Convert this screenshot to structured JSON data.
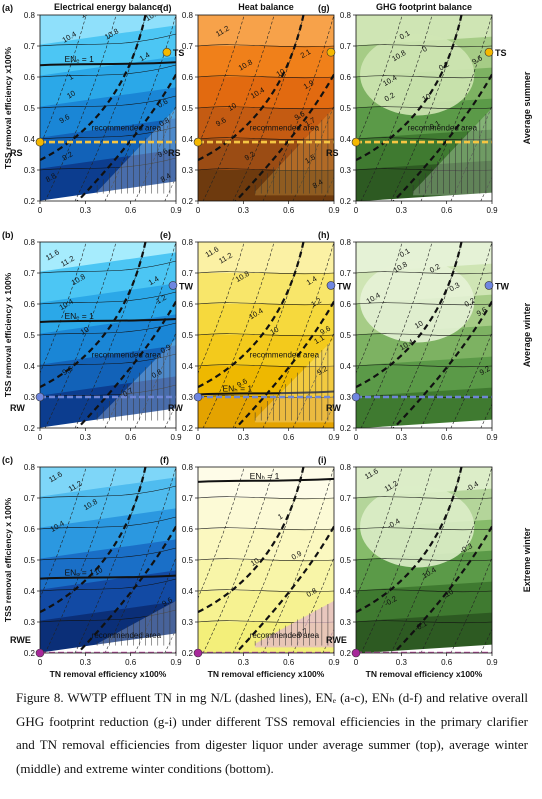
{
  "caption": "Figure 8. WWTP effluent TN in mg N/L (dashed lines), ENₑ (a-c), ENₕ (d-f) and relative overall GHG footprint reduction (g-i) under different TSS removal efficiencies in the primary clarifier and TN removal efficiencies from digester liquor under average summer (top), average winter (middle) and extreme winter conditions (bottom).",
  "columns": [
    "Electrical energy balance",
    "Heat balance",
    "GHG footprint balance"
  ],
  "rows": [
    "Average summer",
    "Average winter",
    "Extreme winter"
  ],
  "ylabels": [
    "TSS removal efficiency x100%",
    "TSS removal efficiency x 100%",
    "TSS removal efficiency x 100%"
  ],
  "xlabel": "TN removal efficiency x100%",
  "colors": {
    "blue": "#1a86d6",
    "orange": "#e26a10",
    "yellow": "#f6e03a",
    "green": "#8cc069"
  },
  "chart_data": [
    {
      "panel": "(a)",
      "type": "heatmap",
      "xlim": [
        0,
        0.9
      ],
      "ylim": [
        0.2,
        0.8
      ],
      "xticks": [
        "0",
        "0.3",
        "0.6",
        "0.9"
      ],
      "yticks": [
        "0.2",
        "0.3",
        "0.4",
        "0.5",
        "0.6",
        "0.7",
        "0.8"
      ],
      "contours": [
        {
          "label": "8.4",
          "x": 0.81,
          "y": 0.26
        },
        {
          "label": "8.8",
          "x": 0.05,
          "y": 0.26
        },
        {
          "label": "9.2",
          "x": 0.16,
          "y": 0.33
        },
        {
          "label": "9.6",
          "x": 0.79,
          "y": 0.34
        },
        {
          "label": "9.6",
          "x": 0.14,
          "y": 0.45
        },
        {
          "label": "10",
          "x": 0.19,
          "y": 0.53
        },
        {
          "label": "1",
          "x": 0.2,
          "y": 0.59
        },
        {
          "label": "10.4",
          "x": 0.16,
          "y": 0.71
        },
        {
          "label": "10.8",
          "x": 0.44,
          "y": 0.72
        },
        {
          "label": "11.2",
          "x": 0.28,
          "y": 0.79
        },
        {
          "label": "1.4",
          "x": 0.67,
          "y": 0.65
        },
        {
          "label": "0.6",
          "x": 0.79,
          "y": 0.5
        },
        {
          "label": "0.8",
          "x": 0.8,
          "y": 0.44
        },
        {
          "label": "10.8",
          "x": 0.71,
          "y": 0.78
        }
      ],
      "balance_label": "ENₑ = 1",
      "region_label": "recommended area",
      "markers": [
        {
          "label": "TS",
          "x": 0.84,
          "y": 0.68
        },
        {
          "label": "RS",
          "x": 0.0,
          "y": 0.39
        }
      ]
    },
    {
      "panel": "(d)",
      "type": "heatmap",
      "xlim": [
        0,
        0.9
      ],
      "ylim": [
        0.2,
        0.8
      ],
      "xticks": [
        "0",
        "0.3",
        "0.6",
        "0.9"
      ],
      "yticks": [
        "0.2",
        "0.3",
        "0.4",
        "0.5",
        "0.6",
        "0.7",
        "0.8"
      ],
      "contours": [
        {
          "label": "11.2",
          "x": 0.13,
          "y": 0.73
        },
        {
          "label": "10.8",
          "x": 0.28,
          "y": 0.62
        },
        {
          "label": "10.4",
          "x": 0.36,
          "y": 0.53
        },
        {
          "label": "10",
          "x": 0.21,
          "y": 0.49
        },
        {
          "label": "9.6",
          "x": 0.13,
          "y": 0.44
        },
        {
          "label": "9.2",
          "x": 0.32,
          "y": 0.33
        },
        {
          "label": "2.1",
          "x": 0.69,
          "y": 0.66
        },
        {
          "label": "1.9",
          "x": 0.71,
          "y": 0.56
        },
        {
          "label": "1.7",
          "x": 0.72,
          "y": 0.44
        },
        {
          "label": "1.5",
          "x": 0.72,
          "y": 0.32
        },
        {
          "label": "8.4",
          "x": 0.77,
          "y": 0.24
        },
        {
          "label": "10",
          "x": 0.53,
          "y": 0.6
        },
        {
          "label": "9.6",
          "x": 0.65,
          "y": 0.46
        }
      ],
      "balance_label": "",
      "region_label": "recommended area",
      "markers": [
        {
          "label": "",
          "x": 0.88,
          "y": 0.68
        },
        {
          "label": "RS",
          "x": 0.0,
          "y": 0.39
        }
      ]
    },
    {
      "panel": "(g)",
      "type": "heatmap",
      "xlim": [
        0,
        0.9
      ],
      "ylim": [
        0.2,
        0.8
      ],
      "xticks": [
        "0",
        "0.3",
        "0.6",
        "0.9"
      ],
      "yticks": [
        "0.2",
        "0.3",
        "0.4",
        "0.5",
        "0.6",
        "0.7",
        "0.8"
      ],
      "contours": [
        {
          "label": "0.1",
          "x": 0.3,
          "y": 0.72
        },
        {
          "label": "0",
          "x": 0.45,
          "y": 0.68
        },
        {
          "label": "0.2",
          "x": 0.2,
          "y": 0.52
        },
        {
          "label": "0.2",
          "x": 0.56,
          "y": 0.62
        },
        {
          "label": "0.1",
          "x": 0.5,
          "y": 0.43
        },
        {
          "label": "10.8",
          "x": 0.25,
          "y": 0.65
        },
        {
          "label": "10.4",
          "x": 0.19,
          "y": 0.57
        },
        {
          "label": "10",
          "x": 0.45,
          "y": 0.52
        },
        {
          "label": "9.6",
          "x": 0.78,
          "y": 0.64
        }
      ],
      "balance_label": "",
      "region_label": "recommended area",
      "markers": [
        {
          "label": "TS",
          "x": 0.88,
          "y": 0.68
        },
        {
          "label": "RS",
          "x": 0.0,
          "y": 0.39
        }
      ]
    },
    {
      "panel": "(b)",
      "type": "heatmap",
      "xlim": [
        0,
        0.9
      ],
      "ylim": [
        0.2,
        0.8
      ],
      "xticks": [
        "0",
        "0.3",
        "0.6",
        "0.9"
      ],
      "yticks": [
        "0.2",
        "0.3",
        "0.4",
        "0.5",
        "0.6",
        "0.7",
        "0.8"
      ],
      "contours": [
        {
          "label": "11.6",
          "x": 0.05,
          "y": 0.74
        },
        {
          "label": "11.2",
          "x": 0.15,
          "y": 0.72
        },
        {
          "label": "10.8",
          "x": 0.22,
          "y": 0.66
        },
        {
          "label": "10.4",
          "x": 0.14,
          "y": 0.58
        },
        {
          "label": "10",
          "x": 0.28,
          "y": 0.5
        },
        {
          "label": "9.6",
          "x": 0.16,
          "y": 0.37
        },
        {
          "label": "1.4",
          "x": 0.73,
          "y": 0.66
        },
        {
          "label": "1.2",
          "x": 0.78,
          "y": 0.6
        },
        {
          "label": "0.9",
          "x": 0.81,
          "y": 0.44
        },
        {
          "label": "0.8",
          "x": 0.75,
          "y": 0.36
        },
        {
          "label": "0.7",
          "x": 0.56,
          "y": 0.3
        }
      ],
      "balance_label": "ENₑ = 1",
      "region_label": "recommended area",
      "markers": [
        {
          "label": "TW",
          "x": 0.88,
          "y": 0.66
        },
        {
          "label": "RW",
          "x": 0.0,
          "y": 0.3
        }
      ]
    },
    {
      "panel": "(e)",
      "type": "heatmap",
      "xlim": [
        0,
        0.9
      ],
      "ylim": [
        0.2,
        0.8
      ],
      "xticks": [
        "0",
        "0.3",
        "0.6",
        "0.9"
      ],
      "yticks": [
        "0.2",
        "0.3",
        "0.4",
        "0.5",
        "0.6",
        "0.7",
        "0.8"
      ],
      "contours": [
        {
          "label": "11.6",
          "x": 0.06,
          "y": 0.75
        },
        {
          "label": "11.2",
          "x": 0.15,
          "y": 0.73
        },
        {
          "label": "10.8",
          "x": 0.26,
          "y": 0.67
        },
        {
          "label": "10.4",
          "x": 0.35,
          "y": 0.55
        },
        {
          "label": "10",
          "x": 0.49,
          "y": 0.5
        },
        {
          "label": "9.6",
          "x": 0.27,
          "y": 0.33
        },
        {
          "label": "1.4",
          "x": 0.73,
          "y": 0.66
        },
        {
          "label": "1.2",
          "x": 0.76,
          "y": 0.59
        },
        {
          "label": "1.1",
          "x": 0.78,
          "y": 0.47
        },
        {
          "label": "9.6",
          "x": 0.82,
          "y": 0.5
        },
        {
          "label": "9.2",
          "x": 0.8,
          "y": 0.37
        }
      ],
      "balance_label": "ENₕ = 1",
      "region_label": "recommended area",
      "markers": [
        {
          "label": "TW",
          "x": 0.88,
          "y": 0.66
        },
        {
          "label": "RW",
          "x": 0.0,
          "y": 0.3
        }
      ]
    },
    {
      "panel": "(h)",
      "type": "heatmap",
      "xlim": [
        0,
        0.9
      ],
      "ylim": [
        0.2,
        0.8
      ],
      "xticks": [
        "0",
        "0.3",
        "0.6",
        "0.9"
      ],
      "yticks": [
        "0.2",
        "0.3",
        "0.4",
        "0.5",
        "0.6",
        "0.7",
        "0.8"
      ],
      "contours": [
        {
          "label": "0.1",
          "x": 0.3,
          "y": 0.75
        },
        {
          "label": "0.2",
          "x": 0.5,
          "y": 0.7
        },
        {
          "label": "0.3",
          "x": 0.63,
          "y": 0.64
        },
        {
          "label": "0.2",
          "x": 0.73,
          "y": 0.59
        },
        {
          "label": "10.4",
          "x": 0.08,
          "y": 0.6
        },
        {
          "label": "10.8",
          "x": 0.26,
          "y": 0.7
        },
        {
          "label": "10.4",
          "x": 0.3,
          "y": 0.45
        },
        {
          "label": "10",
          "x": 0.4,
          "y": 0.52
        },
        {
          "label": "9.6",
          "x": 0.81,
          "y": 0.56
        },
        {
          "label": "9.2",
          "x": 0.83,
          "y": 0.37
        }
      ],
      "balance_label": "",
      "region_label": "",
      "markers": [
        {
          "label": "TW",
          "x": 0.88,
          "y": 0.66
        },
        {
          "label": "RW",
          "x": 0.0,
          "y": 0.3
        }
      ]
    },
    {
      "panel": "(c)",
      "type": "heatmap",
      "xlim": [
        0,
        0.9
      ],
      "ylim": [
        0.2,
        0.8
      ],
      "xticks": [
        "0",
        "0.3",
        "0.6",
        "0.9"
      ],
      "yticks": [
        "0.2",
        "0.3",
        "0.4",
        "0.5",
        "0.6",
        "0.7",
        "0.8"
      ],
      "contours": [
        {
          "label": "11.6",
          "x": 0.07,
          "y": 0.75
        },
        {
          "label": "11.2",
          "x": 0.2,
          "y": 0.72
        },
        {
          "label": "10.8",
          "x": 0.3,
          "y": 0.66
        },
        {
          "label": "10.4",
          "x": 0.08,
          "y": 0.59
        },
        {
          "label": "10",
          "x": 0.37,
          "y": 0.45
        },
        {
          "label": "9.6",
          "x": 0.82,
          "y": 0.35
        }
      ],
      "balance_label": "ENₑ = 1",
      "region_label": "recommended area",
      "markers": [
        {
          "label": "RWE",
          "x": 0.0,
          "y": 0.2
        }
      ]
    },
    {
      "panel": "(f)",
      "type": "heatmap",
      "xlim": [
        0,
        0.9
      ],
      "ylim": [
        0.2,
        0.8
      ],
      "xticks": [
        "0",
        "0.3",
        "0.6",
        "0.9"
      ],
      "yticks": [
        "0.2",
        "0.3",
        "0.4",
        "0.5",
        "0.6",
        "0.7",
        "0.8"
      ],
      "contours": [
        {
          "label": "1",
          "x": 0.54,
          "y": 0.63
        },
        {
          "label": "0.9",
          "x": 0.63,
          "y": 0.5
        },
        {
          "label": "0.8",
          "x": 0.73,
          "y": 0.38
        },
        {
          "label": "0.7",
          "x": 0.67,
          "y": 0.25
        },
        {
          "label": "10",
          "x": 0.36,
          "y": 0.48
        }
      ],
      "balance_label": "ENₕ = 1",
      "region_label": "recommended area",
      "markers": [
        {
          "label": "",
          "x": 0.0,
          "y": 0.2
        }
      ]
    },
    {
      "panel": "(i)",
      "type": "heatmap",
      "xlim": [
        0,
        0.9
      ],
      "ylim": [
        0.2,
        0.8
      ],
      "xticks": [
        "0",
        "0.3",
        "0.6",
        "0.9"
      ],
      "yticks": [
        "0.2",
        "0.3",
        "0.4",
        "0.5",
        "0.6",
        "0.7",
        "0.8"
      ],
      "contours": [
        {
          "label": "11.6",
          "x": 0.07,
          "y": 0.76
        },
        {
          "label": "11.2",
          "x": 0.2,
          "y": 0.72
        },
        {
          "label": "-0.4",
          "x": 0.74,
          "y": 0.72
        },
        {
          "label": "-0.4",
          "x": 0.22,
          "y": 0.6
        },
        {
          "label": "-0.3",
          "x": 0.7,
          "y": 0.52
        },
        {
          "label": "-0.2",
          "x": 0.2,
          "y": 0.35
        },
        {
          "label": "-0.1",
          "x": 0.4,
          "y": 0.27
        },
        {
          "label": "10.4",
          "x": 0.45,
          "y": 0.44
        },
        {
          "label": "10",
          "x": 0.6,
          "y": 0.38
        }
      ],
      "balance_label": "",
      "region_label": "",
      "markers": [
        {
          "label": "RWE",
          "x": 0.0,
          "y": 0.2
        }
      ]
    }
  ]
}
